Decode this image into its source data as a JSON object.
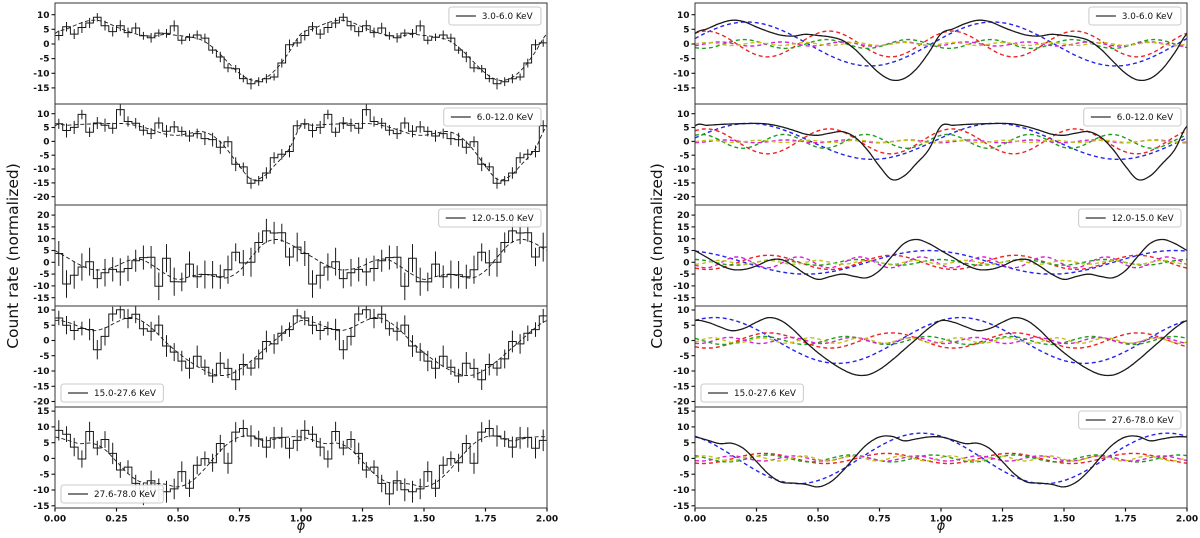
{
  "left_figure": {
    "ylabel": "Count rate (normalized)",
    "xlabel": "ϕ"
  },
  "right_figure": {
    "ylabel": "Count rate (normalized)",
    "xlabel": "ϕ"
  },
  "chart_data": {
    "type": "line",
    "xlabel": "ϕ",
    "ylabel": "Count rate (normalized)",
    "x_range": [
      0,
      2
    ],
    "x_tick_values": [
      0,
      0.25,
      0.5,
      0.75,
      1.0,
      1.25,
      1.5,
      1.75,
      2.0
    ],
    "x_tick_labels": [
      "0.00",
      "0.25",
      "0.50",
      "0.75",
      "1.00",
      "1.25",
      "1.50",
      "1.75",
      "2.00"
    ],
    "profile_phase_step": 0.05,
    "bins_per_cycle": 32,
    "cycles_shown": 2,
    "line_color": "#1a1a1a",
    "harmonic_colors": {
      "1": "#2424ee",
      "2": "#ee2222",
      "3": "#1f9e1f",
      "4": "#d622d6",
      "5": "#c2c218"
    },
    "legend_positions": {
      "left_figure": [
        "top-right",
        "top-right",
        "top-right",
        "bottom-left",
        "bottom-left"
      ],
      "right_figure": [
        "top-right",
        "top-right",
        "top-right",
        "bottom-left",
        "top-right"
      ]
    },
    "bands": [
      {
        "label": "3.0-6.0 KeV",
        "ylim": [
          -20.5,
          14.0
        ],
        "y_ticks": [
          10,
          5,
          0,
          -5,
          -10,
          -15
        ],
        "model_profile": [
          3.5,
          5.2,
          7.0,
          8.1,
          7.6,
          5.8,
          4.2,
          3.0,
          2.7,
          3.3,
          2.9,
          2.4,
          1.2,
          -1.8,
          -6.0,
          -10.0,
          -12.3,
          -11.8,
          -8.5,
          -3.0
        ],
        "harmonics": [
          {
            "n": 1,
            "amp": 7.5,
            "peak_phase": 0.21
          },
          {
            "n": 2,
            "amp": 4.4,
            "peak_phase": 0.545
          },
          {
            "n": 3,
            "amp": 1.5,
            "peak_phase": 0.2
          },
          {
            "n": 4,
            "amp": 0.7,
            "peak_phase": 0.1
          },
          {
            "n": 5,
            "amp": 0.5,
            "peak_phase": 0.05
          }
        ],
        "noise_sigma": 1.3,
        "errorbar_size": 1.6,
        "noise_seed": 11
      },
      {
        "label": "6.0-12.0 KeV",
        "ylim": [
          -23.0,
          13.5
        ],
        "y_ticks": [
          10,
          5,
          0,
          -5,
          -10,
          -15,
          -20
        ],
        "model_profile": [
          5.5,
          5.8,
          6.1,
          6.3,
          6.4,
          6.5,
          6.2,
          5.3,
          4.0,
          2.6,
          2.2,
          3.0,
          3.5,
          1.5,
          -3.0,
          -9.0,
          -13.8,
          -12.5,
          -8.0,
          -3.0
        ],
        "harmonics": [
          {
            "n": 1,
            "amp": 6.5,
            "peak_phase": 0.22
          },
          {
            "n": 2,
            "amp": 4.5,
            "peak_phase": 0.545
          },
          {
            "n": 3,
            "amp": 2.5,
            "peak_phase": 0.36
          },
          {
            "n": 4,
            "amp": 0.5,
            "peak_phase": 0.12
          },
          {
            "n": 5,
            "amp": 0.4,
            "peak_phase": 0.06
          }
        ],
        "noise_sigma": 1.6,
        "errorbar_size": 2.1,
        "noise_seed": 22
      },
      {
        "label": "12.0-15.0 KeV",
        "ylim": [
          -18.5,
          24.3
        ],
        "y_ticks": [
          20,
          15,
          10,
          5,
          0,
          -5,
          -10,
          -15
        ],
        "model_profile": [
          5.0,
          2.0,
          -1.0,
          -3.0,
          -3.0,
          -1.5,
          0.8,
          1.2,
          -1.5,
          -5.0,
          -7.2,
          -6.0,
          -5.0,
          -6.0,
          -6.5,
          -3.5,
          2.5,
          8.0,
          9.7,
          8.0
        ],
        "harmonics": [
          {
            "n": 1,
            "amp": 5.0,
            "peak_phase": 0.95
          },
          {
            "n": 2,
            "amp": 3.0,
            "peak_phase": 0.3
          },
          {
            "n": 3,
            "amp": 1.2,
            "peak_phase": 0.33
          },
          {
            "n": 4,
            "amp": 2.3,
            "peak_phase": 0.42
          },
          {
            "n": 5,
            "amp": 0.8,
            "peak_phase": 0.1
          }
        ],
        "noise_sigma": 4.2,
        "errorbar_size": 5.0,
        "noise_seed": 33
      },
      {
        "label": "15.0-27.6 KeV",
        "ylim": [
          -21.8,
          11.3
        ],
        "y_ticks": [
          10,
          5,
          0,
          -5,
          -10,
          -15,
          -20
        ],
        "model_profile": [
          6.5,
          6.0,
          4.5,
          3.2,
          4.0,
          6.0,
          7.5,
          6.5,
          3.5,
          -0.5,
          -4.0,
          -7.0,
          -9.5,
          -11.2,
          -11.3,
          -9.5,
          -6.5,
          -3.0,
          0.5,
          4.0
        ],
        "harmonics": [
          {
            "n": 1,
            "amp": 7.5,
            "peak_phase": 0.08
          },
          {
            "n": 2,
            "amp": 2.5,
            "peak_phase": 0.3
          },
          {
            "n": 3,
            "amp": 1.3,
            "peak_phase": 0.28
          },
          {
            "n": 4,
            "amp": 1.0,
            "peak_phase": 0.14
          },
          {
            "n": 5,
            "amp": 0.9,
            "peak_phase": 0.07
          }
        ],
        "noise_sigma": 2.4,
        "errorbar_size": 3.0,
        "noise_seed": 44
      },
      {
        "label": "27.6-78.0 KeV",
        "ylim": [
          -15.7,
          16.3
        ],
        "y_ticks": [
          15,
          10,
          5,
          0,
          -5,
          -10,
          -15
        ],
        "model_profile": [
          6.8,
          5.8,
          4.7,
          4.8,
          3.0,
          -1.0,
          -5.0,
          -7.5,
          -7.8,
          -8.2,
          -9.0,
          -7.5,
          -4.0,
          0.5,
          4.5,
          6.8,
          7.0,
          5.6,
          6.2,
          6.8
        ],
        "harmonics": [
          {
            "n": 1,
            "amp": 8.0,
            "peak_phase": 0.92
          },
          {
            "n": 2,
            "amp": 1.6,
            "peak_phase": 0.28
          },
          {
            "n": 3,
            "amp": 1.1,
            "peak_phase": 0.3
          },
          {
            "n": 4,
            "amp": 0.8,
            "peak_phase": 0.15
          },
          {
            "n": 5,
            "amp": 0.8,
            "peak_phase": 0.04
          }
        ],
        "noise_sigma": 2.6,
        "errorbar_size": 2.9,
        "noise_seed": 55
      }
    ]
  }
}
